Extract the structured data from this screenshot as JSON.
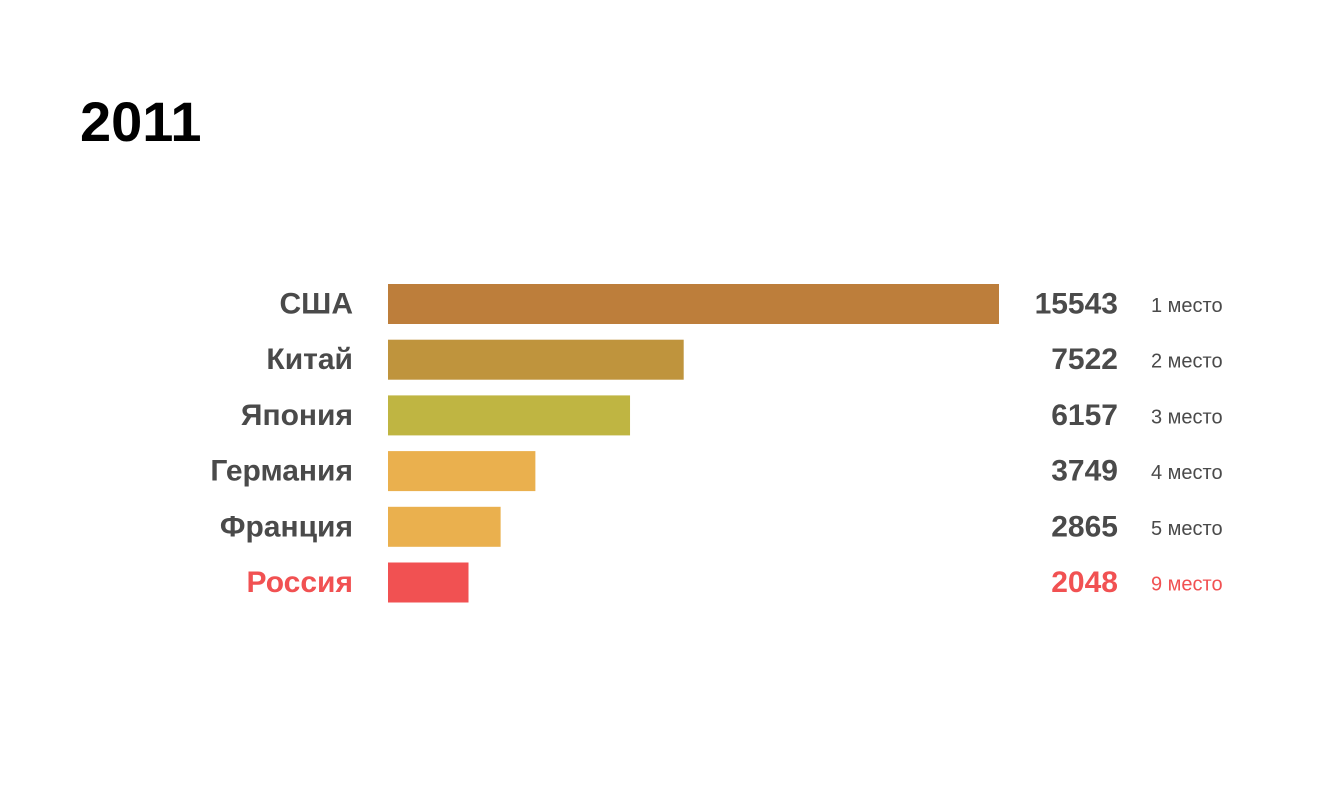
{
  "chart_data": {
    "type": "bar",
    "orientation": "horizontal",
    "title": "2011",
    "xlabel": "",
    "ylabel": "",
    "grid": false,
    "xlim": [
      0,
      15543
    ],
    "categories": [
      "США",
      "Китай",
      "Япония",
      "Германия",
      "Франция",
      "Россия"
    ],
    "values": [
      15543,
      7522,
      6157,
      3749,
      2865,
      2048
    ],
    "value_labels": [
      "15543",
      "7522",
      "6157",
      "3749",
      "2865",
      "2048"
    ],
    "ranks": [
      "1 место",
      "2 место",
      "3 место",
      "4 место",
      "5 место",
      "9 место"
    ],
    "bar_colors": [
      "#BD7E3B",
      "#BF943D",
      "#BFB542",
      "#EAB04E",
      "#EAB04E",
      "#F15152"
    ],
    "text_colors": [
      "#4A4A4A",
      "#4A4A4A",
      "#4A4A4A",
      "#4A4A4A",
      "#4A4A4A",
      "#F15152"
    ],
    "highlight_color": "#F15152"
  }
}
